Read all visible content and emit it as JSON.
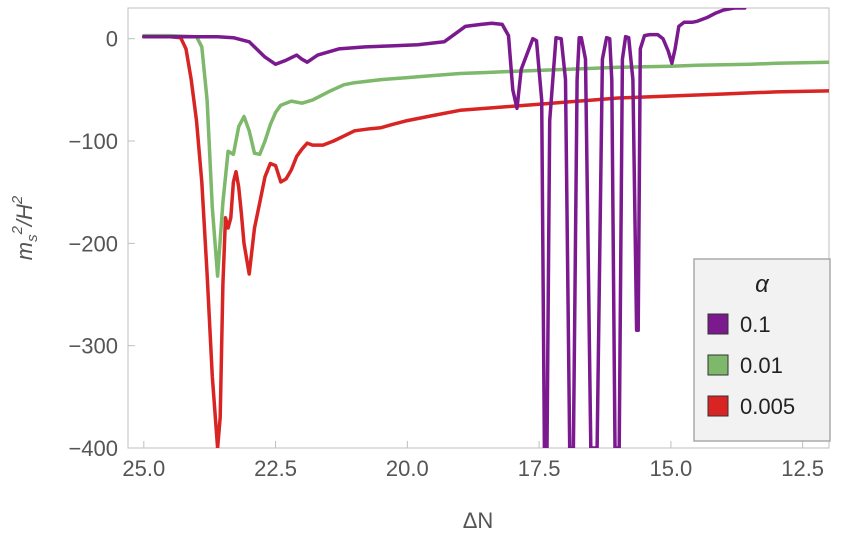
{
  "chart_data": {
    "type": "line",
    "title": "",
    "xlabel": "ΔN",
    "ylabel_base": "m",
    "ylabel_sub": "s",
    "ylabel_sup": "2",
    "ylabel_tail": "/H",
    "ylabel_tail_sup": "2",
    "x_reversed": true,
    "xlim": [
      25.3,
      12.0
    ],
    "ylim": [
      -400,
      30
    ],
    "xticks": [
      25.0,
      22.5,
      20.0,
      17.5,
      15.0,
      12.5
    ],
    "xtick_labels": [
      "25.0",
      "22.5",
      "20.0",
      "17.5",
      "15.0",
      "12.5"
    ],
    "yticks": [
      0,
      -100,
      -200,
      -300,
      -400
    ],
    "ytick_labels": [
      "0",
      "−100",
      "−200",
      "−300",
      "−400"
    ],
    "grid": false,
    "legend": {
      "title": "α",
      "placement": "bottom-right"
    },
    "series": [
      {
        "name": "0.1",
        "color": "#7B1A8F",
        "x": [
          25.0,
          24.5,
          24.0,
          23.6,
          23.3,
          23.0,
          22.7,
          22.5,
          22.3,
          22.1,
          22.0,
          21.9,
          21.7,
          21.3,
          20.8,
          20.3,
          19.8,
          19.3,
          18.9,
          18.6,
          18.4,
          18.2,
          18.08,
          18.0,
          17.92,
          17.84,
          17.62,
          17.55,
          17.45,
          17.4,
          17.35,
          17.3,
          17.18,
          17.08,
          17.0,
          16.92,
          16.85,
          16.78,
          16.74,
          16.7,
          16.62,
          16.52,
          16.4,
          16.3,
          16.22,
          16.16,
          16.12,
          16.06,
          15.98,
          15.92,
          15.86,
          15.8,
          15.72,
          15.65,
          15.62,
          15.58,
          15.5,
          15.4,
          15.25,
          15.15,
          15.05,
          14.98,
          14.92,
          14.85,
          14.75,
          14.6,
          14.5,
          14.4,
          14.3,
          14.15,
          14.0,
          13.9,
          13.8,
          13.6
        ],
        "y": [
          2,
          2,
          2,
          2,
          1,
          -3,
          -18,
          -25,
          -21,
          -16,
          -20,
          -23,
          -16,
          -10,
          -8,
          -7,
          -6,
          -3,
          12,
          14,
          15,
          14,
          3,
          -50,
          -68,
          -30,
          0,
          -2,
          -60,
          -400,
          -400,
          -80,
          1,
          0,
          -40,
          -400,
          -400,
          -40,
          1,
          1,
          -20,
          -400,
          -400,
          -20,
          1,
          0,
          -40,
          -400,
          -400,
          -20,
          2,
          1,
          -40,
          -285,
          -285,
          -10,
          3,
          4,
          4,
          0,
          -12,
          -24,
          -10,
          12,
          16,
          16,
          17,
          19,
          21,
          25,
          28,
          29,
          30,
          30
        ]
      },
      {
        "name": "0.01",
        "color": "#7DB86B",
        "x": [
          25.0,
          24.5,
          24.0,
          23.9,
          23.8,
          23.7,
          23.6,
          23.5,
          23.4,
          23.3,
          23.2,
          23.1,
          23.0,
          22.9,
          22.8,
          22.7,
          22.6,
          22.5,
          22.4,
          22.2,
          22.0,
          21.8,
          21.5,
          21.2,
          21.0,
          20.5,
          20.0,
          19.5,
          19.0,
          18.5,
          18.0,
          17.5,
          17.0,
          16.5,
          16.0,
          15.5,
          15.0,
          14.5,
          14.0,
          13.5,
          13.0,
          12.5,
          12.0
        ],
        "y": [
          3,
          3,
          2,
          -8,
          -60,
          -165,
          -232,
          -160,
          -110,
          -113,
          -86,
          -76,
          -90,
          -112,
          -113,
          -100,
          -84,
          -72,
          -65,
          -61,
          -63,
          -60,
          -52,
          -45,
          -43,
          -40,
          -38,
          -36,
          -34,
          -33,
          -32,
          -31,
          -30,
          -29,
          -28,
          -27.5,
          -27,
          -26,
          -25.5,
          -25,
          -24,
          -23.5,
          -23
        ]
      },
      {
        "name": "0.005",
        "color": "#D92424",
        "x": [
          25.0,
          24.5,
          24.3,
          24.2,
          24.1,
          24.0,
          23.9,
          23.8,
          23.7,
          23.6,
          23.55,
          23.5,
          23.45,
          23.4,
          23.35,
          23.3,
          23.25,
          23.2,
          23.15,
          23.1,
          23.0,
          22.9,
          22.8,
          22.7,
          22.6,
          22.5,
          22.4,
          22.3,
          22.2,
          22.1,
          22.0,
          21.9,
          21.8,
          21.6,
          21.4,
          21.2,
          21.0,
          20.7,
          20.5,
          20.3,
          20.0,
          19.5,
          19.0,
          18.5,
          18.0,
          17.5,
          17.0,
          16.5,
          16.0,
          15.5,
          15.0,
          14.5,
          14.0,
          13.5,
          13.0,
          12.5,
          12.0
        ],
        "y": [
          2,
          2,
          1,
          -10,
          -40,
          -80,
          -140,
          -230,
          -330,
          -400,
          -370,
          -240,
          -175,
          -185,
          -175,
          -140,
          -130,
          -145,
          -170,
          -200,
          -230,
          -185,
          -160,
          -135,
          -122,
          -124,
          -140,
          -137,
          -128,
          -115,
          -108,
          -102,
          -104,
          -104,
          -100,
          -95,
          -90,
          -88,
          -87,
          -84,
          -80,
          -75,
          -70,
          -68,
          -66,
          -64,
          -62,
          -60,
          -58,
          -57,
          -56,
          -55,
          -54,
          -53,
          -52,
          -51.5,
          -51
        ]
      }
    ]
  }
}
